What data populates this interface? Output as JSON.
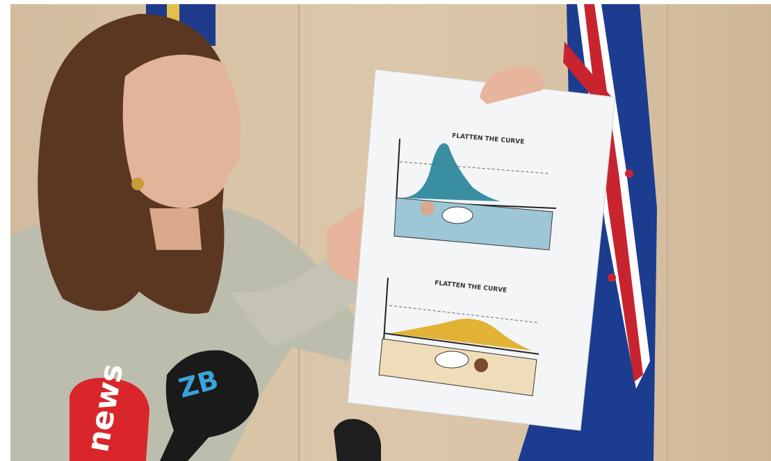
{
  "paper": {
    "charts": [
      {
        "title": "FLATTEN THE CURVE"
      },
      {
        "title": "FLATTEN THE CURVE"
      }
    ]
  },
  "microphones": [
    {
      "label": "ZB"
    },
    {
      "label": "news"
    }
  ]
}
